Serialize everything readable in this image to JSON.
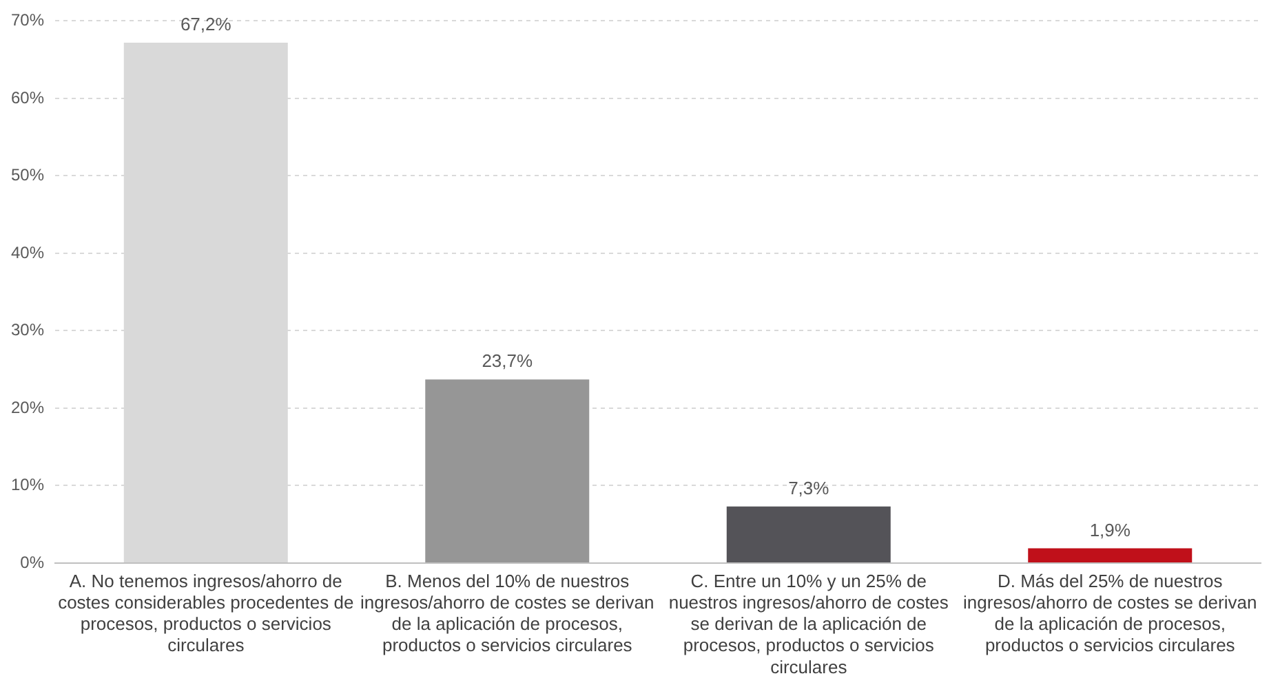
{
  "chart_data": {
    "type": "bar",
    "categories": [
      "A. No tenemos ingresos/ahorro de costes considerables procedentes de procesos, productos o servicios circulares",
      "B. Menos del 10% de nuestros ingresos/ahorro de costes se derivan de la aplicación de procesos, productos o servicios circulares",
      "C. Entre un 10% y un 25% de nuestros ingresos/ahorro de costes se derivan de la aplicación de procesos, productos o servicios circulares",
      "D. Más del 25% de nuestros ingresos/ahorro de costes se derivan de la aplicación de procesos, productos o servicios circulares"
    ],
    "values": [
      67.2,
      23.7,
      7.3,
      1.9
    ],
    "colors": [
      "#d9d9d9",
      "#969696",
      "#545358",
      "#c0101a"
    ],
    "value_labels": [
      "67,2%",
      "23,7%",
      "7,3%",
      "1,9%"
    ],
    "ylim": [
      0,
      70
    ],
    "yticks": [
      {
        "value": 0,
        "label": "0%"
      },
      {
        "value": 10,
        "label": "10%"
      },
      {
        "value": 20,
        "label": "20%"
      },
      {
        "value": 30,
        "label": "30%"
      },
      {
        "value": 40,
        "label": "40%"
      },
      {
        "value": 50,
        "label": "50%"
      },
      {
        "value": 60,
        "label": "60%"
      },
      {
        "value": 70,
        "label": "70%"
      }
    ],
    "grid": "y"
  }
}
